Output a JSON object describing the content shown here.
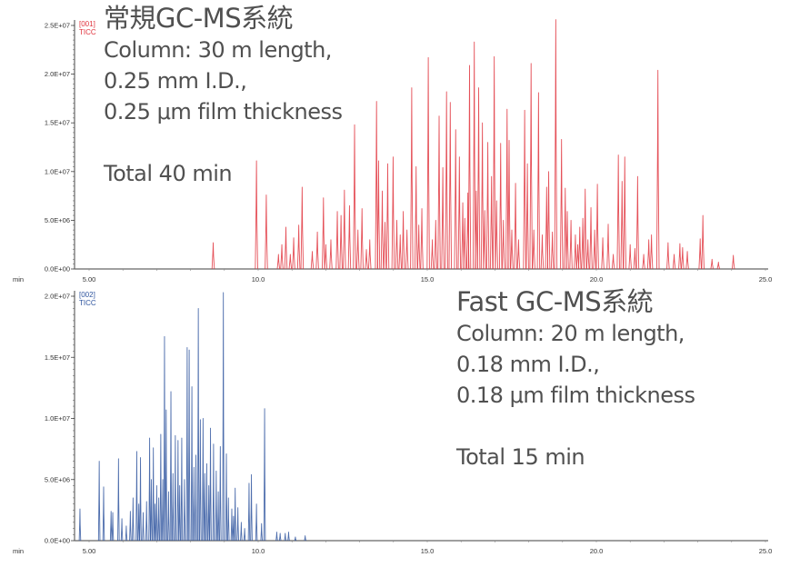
{
  "chart_data": [
    {
      "type": "line",
      "title": "常規GC-MS系統",
      "annotation_lines": [
        "Column: 30 m length,",
        "0.25 mm I.D.,",
        "0.25 μm film thickness"
      ],
      "total_label": "Total 40 min",
      "legend": [
        "[001]",
        "TICC"
      ],
      "color": "#e0323c",
      "xlabel": "min",
      "xlim": [
        4.57,
        25.25
      ],
      "ylim": [
        0,
        25000000
      ],
      "x_ticks": [
        5,
        10,
        15,
        20,
        25
      ],
      "x_tick_labels": [
        "5.00",
        "10.0",
        "15.0",
        "20.0",
        "25.0"
      ],
      "y_ticks": [
        0,
        5000000,
        10000000,
        15000000,
        20000000,
        25000000
      ],
      "y_tick_labels": [
        "0.0E+00",
        "5.0E+06",
        "1.0E+07",
        "1.5E+07",
        "2.0E+07",
        "2.5E+07"
      ],
      "peak_width_min": 0.035,
      "peaks": [
        [
          8.67,
          2700000
        ],
        [
          9.95,
          11100000
        ],
        [
          10.24,
          7600000
        ],
        [
          10.6,
          1500000
        ],
        [
          10.7,
          2500000
        ],
        [
          10.82,
          4300000
        ],
        [
          10.95,
          1500000
        ],
        [
          11.05,
          3200000
        ],
        [
          11.2,
          4500000
        ],
        [
          11.3,
          8400000
        ],
        [
          11.6,
          1800000
        ],
        [
          11.75,
          3800000
        ],
        [
          11.93,
          7300000
        ],
        [
          12.0,
          2500000
        ],
        [
          12.15,
          3000000
        ],
        [
          12.34,
          5900000
        ],
        [
          12.45,
          5500000
        ],
        [
          12.55,
          8100000
        ],
        [
          12.7,
          6500000
        ],
        [
          12.85,
          14800000
        ],
        [
          12.95,
          4000000
        ],
        [
          13.07,
          6200000
        ],
        [
          13.2,
          2000000
        ],
        [
          13.3,
          3000000
        ],
        [
          13.5,
          17200000
        ],
        [
          13.56,
          11100000
        ],
        [
          13.67,
          8000000
        ],
        [
          13.75,
          4800000
        ],
        [
          13.83,
          10800000
        ],
        [
          13.99,
          11500000
        ],
        [
          14.1,
          5000000
        ],
        [
          14.2,
          3500000
        ],
        [
          14.29,
          5900000
        ],
        [
          14.4,
          4000000
        ],
        [
          14.54,
          18600000
        ],
        [
          14.67,
          10500000
        ],
        [
          14.75,
          4500000
        ],
        [
          14.84,
          6200000
        ],
        [
          15.03,
          21700000
        ],
        [
          15.15,
          3000000
        ],
        [
          15.25,
          5000000
        ],
        [
          15.35,
          15700000
        ],
        [
          15.46,
          10400000
        ],
        [
          15.57,
          18200000
        ],
        [
          15.68,
          17100000
        ],
        [
          15.84,
          14300000
        ],
        [
          15.95,
          11500000
        ],
        [
          16.05,
          6800000
        ],
        [
          16.11,
          5200000
        ],
        [
          16.2,
          7800000
        ],
        [
          16.25,
          20900000
        ],
        [
          16.39,
          23300000
        ],
        [
          16.45,
          8000000
        ],
        [
          16.52,
          18600000
        ],
        [
          16.63,
          15000000
        ],
        [
          16.7,
          6000000
        ],
        [
          16.79,
          13000000
        ],
        [
          16.9,
          9500000
        ],
        [
          16.98,
          21800000
        ],
        [
          17.05,
          7000000
        ],
        [
          17.17,
          12900000
        ],
        [
          17.25,
          5000000
        ],
        [
          17.36,
          16400000
        ],
        [
          17.42,
          13200000
        ],
        [
          17.5,
          4000000
        ],
        [
          17.61,
          8800000
        ],
        [
          17.7,
          3000000
        ],
        [
          17.88,
          16300000
        ],
        [
          17.96,
          10800000
        ],
        [
          18.07,
          21100000
        ],
        [
          18.15,
          4000000
        ],
        [
          18.29,
          18100000
        ],
        [
          18.4,
          3500000
        ],
        [
          18.53,
          8400000
        ],
        [
          18.59,
          10000000
        ],
        [
          18.7,
          3800000
        ],
        [
          18.8,
          25600000
        ],
        [
          18.97,
          13300000
        ],
        [
          19.08,
          8300000
        ],
        [
          19.14,
          5900000
        ],
        [
          19.25,
          5000000
        ],
        [
          19.38,
          3500000
        ],
        [
          19.45,
          2500000
        ],
        [
          19.51,
          4300000
        ],
        [
          19.6,
          5200000
        ],
        [
          19.67,
          8200000
        ],
        [
          19.75,
          3000000
        ],
        [
          19.84,
          6300000
        ],
        [
          19.95,
          4000000
        ],
        [
          20.03,
          8700000
        ],
        [
          20.19,
          3200000
        ],
        [
          20.35,
          4600000
        ],
        [
          20.5,
          1500000
        ],
        [
          20.65,
          11700000
        ],
        [
          20.76,
          9000000
        ],
        [
          20.84,
          11500000
        ],
        [
          21.0,
          2500000
        ],
        [
          21.14,
          2100000
        ],
        [
          21.22,
          9500000
        ],
        [
          21.4,
          1500000
        ],
        [
          21.55,
          3000000
        ],
        [
          21.63,
          3500000
        ],
        [
          21.82,
          20400000
        ],
        [
          22.12,
          2700000
        ],
        [
          22.3,
          1500000
        ],
        [
          22.47,
          2600000
        ],
        [
          22.55,
          2200000
        ],
        [
          22.69,
          1800000
        ],
        [
          23.07,
          3100000
        ],
        [
          23.15,
          5500000
        ],
        [
          23.42,
          1000000
        ],
        [
          23.61,
          700000
        ],
        [
          24.05,
          1400000
        ]
      ]
    },
    {
      "type": "line",
      "title": "Fast GC-MS系統",
      "annotation_lines": [
        "Column: 20 m length,",
        "0.18 mm I.D.,",
        "0.18 μm film thickness"
      ],
      "total_label": "Total 15 min",
      "legend": [
        "[002]",
        "TICC"
      ],
      "color": "#2f559f",
      "xlabel": "min",
      "xlim": [
        4.57,
        25.25
      ],
      "ylim": [
        0,
        20000000
      ],
      "x_ticks": [
        5,
        10,
        15,
        20,
        25
      ],
      "x_tick_labels": [
        "5.00",
        "10.0",
        "15.0",
        "20.0",
        "25.0"
      ],
      "y_ticks": [
        0,
        5000000,
        10000000,
        15000000,
        20000000
      ],
      "y_tick_labels": [
        "0.0E+00",
        "5.0E+06",
        "1.0E+07",
        "1.5E+07",
        "2.0E+07"
      ],
      "peak_width_min": 0.022,
      "peaks": [
        [
          4.73,
          2600000
        ],
        [
          5.3,
          6500000
        ],
        [
          5.43,
          4400000
        ],
        [
          5.65,
          2400000
        ],
        [
          5.7,
          2300000
        ],
        [
          5.87,
          6700000
        ],
        [
          5.97,
          1800000
        ],
        [
          6.1,
          1200000
        ],
        [
          6.22,
          2400000
        ],
        [
          6.3,
          3500000
        ],
        [
          6.41,
          7300000
        ],
        [
          6.47,
          3000000
        ],
        [
          6.52,
          6800000
        ],
        [
          6.6,
          2300000
        ],
        [
          6.7,
          3200000
        ],
        [
          6.79,
          8400000
        ],
        [
          6.84,
          5000000
        ],
        [
          6.9,
          7600000
        ],
        [
          6.95,
          3000000
        ],
        [
          7.0,
          4500000
        ],
        [
          7.06,
          3500000
        ],
        [
          7.12,
          8700000
        ],
        [
          7.18,
          5000000
        ],
        [
          7.23,
          16700000
        ],
        [
          7.28,
          10700000
        ],
        [
          7.35,
          4000000
        ],
        [
          7.42,
          12200000
        ],
        [
          7.48,
          5500000
        ],
        [
          7.55,
          8600000
        ],
        [
          7.63,
          8200000
        ],
        [
          7.68,
          4500000
        ],
        [
          7.74,
          8400000
        ],
        [
          7.82,
          5000000
        ],
        [
          7.9,
          15800000
        ],
        [
          7.96,
          15600000
        ],
        [
          8.04,
          12600000
        ],
        [
          8.1,
          6000000
        ],
        [
          8.16,
          7000000
        ],
        [
          8.23,
          19000000
        ],
        [
          8.29,
          9900000
        ],
        [
          8.37,
          10000000
        ],
        [
          8.42,
          5500000
        ],
        [
          8.48,
          6300000
        ],
        [
          8.54,
          4500000
        ],
        [
          8.59,
          9200000
        ],
        [
          8.68,
          7900000
        ],
        [
          8.76,
          5700000
        ],
        [
          8.82,
          4000000
        ],
        [
          8.88,
          7700000
        ],
        [
          8.97,
          20300000
        ],
        [
          9.06,
          7100000
        ],
        [
          9.12,
          3500000
        ],
        [
          9.22,
          2600000
        ],
        [
          9.27,
          2000000
        ],
        [
          9.32,
          4300000
        ],
        [
          9.4,
          2700000
        ],
        [
          9.5,
          1500000
        ],
        [
          9.6,
          1000000
        ],
        [
          9.73,
          4700000
        ],
        [
          9.8,
          5400000
        ],
        [
          9.95,
          3000000
        ],
        [
          10.1,
          1400000
        ],
        [
          10.19,
          10800000
        ],
        [
          10.55,
          700000
        ],
        [
          10.65,
          600000
        ],
        [
          10.8,
          600000
        ],
        [
          10.9,
          700000
        ],
        [
          11.1,
          300000
        ],
        [
          11.39,
          400000
        ]
      ]
    }
  ]
}
